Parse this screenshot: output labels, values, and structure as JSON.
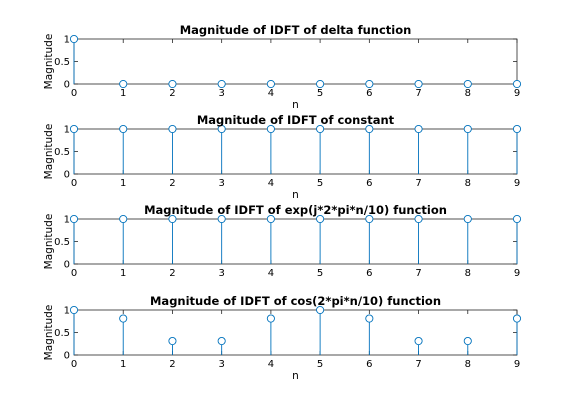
{
  "chart_data": [
    {
      "type": "stem",
      "title": "Magnitude of IDFT of delta function",
      "xlabel": "n",
      "ylabel": "Magnitude",
      "xlim": [
        0,
        9
      ],
      "ylim": [
        0,
        1
      ],
      "xticks": [
        "0",
        "1",
        "2",
        "3",
        "4",
        "5",
        "6",
        "7",
        "8",
        "9"
      ],
      "yticks": [
        "0",
        "0.5",
        "1"
      ],
      "x": [
        0,
        1,
        2,
        3,
        4,
        5,
        6,
        7,
        8,
        9
      ],
      "values": [
        1,
        0,
        0,
        0,
        0,
        0,
        0,
        0,
        0,
        0
      ],
      "grid": false,
      "color": "#0072bd"
    },
    {
      "type": "stem",
      "title": "Magnitude of IDFT of constant",
      "xlabel": "n",
      "ylabel": "Magnitude",
      "xlim": [
        0,
        9
      ],
      "ylim": [
        0,
        1
      ],
      "xticks": [
        "0",
        "1",
        "2",
        "3",
        "4",
        "5",
        "6",
        "7",
        "8",
        "9"
      ],
      "yticks": [
        "0",
        "0.5",
        "1"
      ],
      "x": [
        0,
        1,
        2,
        3,
        4,
        5,
        6,
        7,
        8,
        9
      ],
      "values": [
        1,
        1,
        1,
        1,
        1,
        1,
        1,
        1,
        1,
        1
      ],
      "grid": false,
      "color": "#0072bd"
    },
    {
      "type": "stem",
      "title": "Magnitude of IDFT of exp(j*2*pi*n/10) function",
      "xlabel": "",
      "ylabel": "Magnitude",
      "xlim": [
        0,
        9
      ],
      "ylim": [
        0,
        1
      ],
      "xticks": [
        "0",
        "1",
        "2",
        "3",
        "4",
        "5",
        "6",
        "7",
        "8",
        "9"
      ],
      "yticks": [
        "0",
        "0.5",
        "1"
      ],
      "x": [
        0,
        1,
        2,
        3,
        4,
        5,
        6,
        7,
        8,
        9
      ],
      "values": [
        1,
        1,
        1,
        1,
        1,
        1,
        1,
        1,
        1,
        1
      ],
      "grid": false,
      "color": "#0072bd"
    },
    {
      "type": "stem",
      "title": "Magnitude of IDFT of cos(2*pi*n/10) function",
      "xlabel": "n",
      "ylabel": "Magnitude",
      "xlim": [
        0,
        9
      ],
      "ylim": [
        0,
        1
      ],
      "xticks": [
        "0",
        "1",
        "2",
        "3",
        "4",
        "5",
        "6",
        "7",
        "8",
        "9"
      ],
      "yticks": [
        "0",
        "0.5",
        "1"
      ],
      "x": [
        0,
        1,
        2,
        3,
        4,
        5,
        6,
        7,
        8,
        9
      ],
      "values": [
        1,
        0.81,
        0.31,
        0.31,
        0.81,
        1,
        0.81,
        0.31,
        0.31,
        0.81
      ],
      "grid": false,
      "color": "#0072bd"
    }
  ]
}
